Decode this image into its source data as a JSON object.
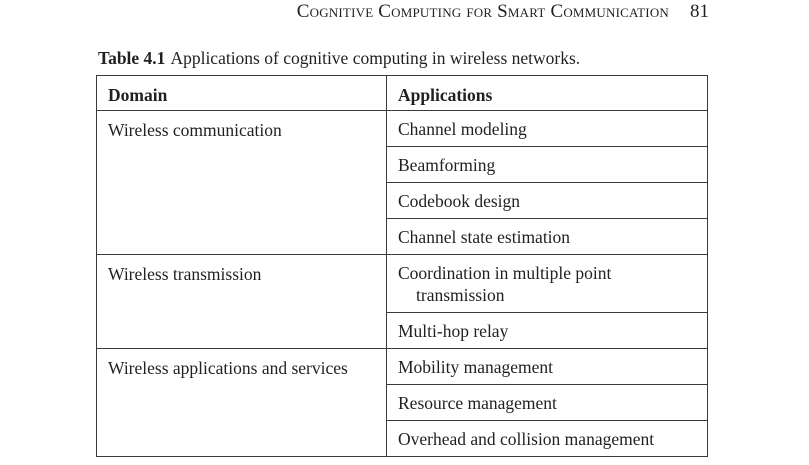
{
  "running_head": {
    "title": "Cognitive Computing for Smart Communication",
    "page_number": "81"
  },
  "caption": {
    "label": "Table 4.1",
    "text": "Applications of cognitive computing in wireless networks."
  },
  "table": {
    "headers": [
      "Domain",
      "Applications"
    ],
    "groups": [
      {
        "domain": "Wireless communication",
        "applications": [
          "Channel modeling",
          "Beamforming",
          "Codebook design",
          "Channel state estimation"
        ]
      },
      {
        "domain": "Wireless transmission",
        "applications": [
          "Coordination in multiple point transmission",
          "Multi-hop relay"
        ]
      },
      {
        "domain": "Wireless applications and services",
        "applications": [
          "Mobility management",
          "Resource management",
          "Overhead and collision management"
        ]
      }
    ]
  }
}
